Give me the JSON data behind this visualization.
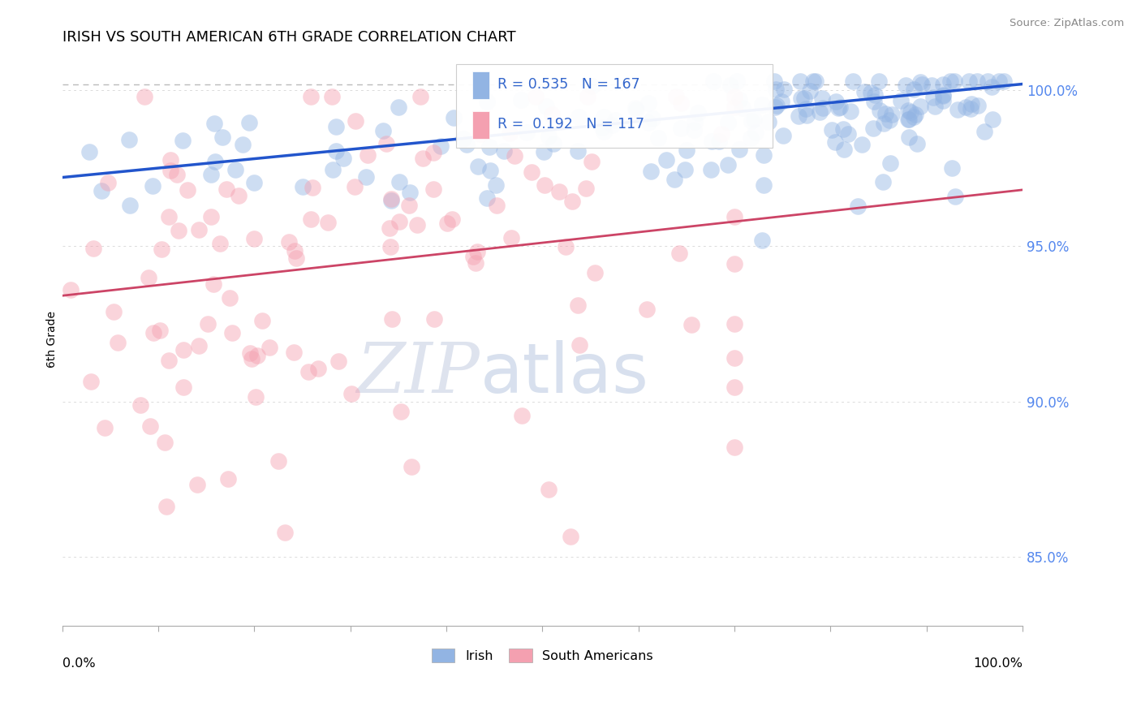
{
  "title": "IRISH VS SOUTH AMERICAN 6TH GRADE CORRELATION CHART",
  "source": "Source: ZipAtlas.com",
  "ylabel": "6th Grade",
  "legend_labels": [
    "Irish",
    "South Americans"
  ],
  "irish_color": "#92b4e3",
  "sa_color": "#f4a0b0",
  "irish_line_color": "#2255cc",
  "sa_line_color": "#cc4466",
  "irish_R": 0.535,
  "irish_N": 167,
  "sa_R": 0.192,
  "sa_N": 117,
  "right_yticks": [
    85.0,
    90.0,
    95.0,
    100.0
  ],
  "background_color": "#ffffff",
  "xmin": 0.0,
  "xmax": 1.0,
  "ymin": 0.828,
  "ymax": 1.012,
  "irish_line_x0": 0.0,
  "irish_line_y0": 0.972,
  "irish_line_x1": 1.0,
  "irish_line_y1": 1.002,
  "sa_line_x0": 0.0,
  "sa_line_y0": 0.934,
  "sa_line_x1": 1.0,
  "sa_line_y1": 0.968,
  "dashed_line_y": 1.002,
  "watermark_zip": "ZIP",
  "watermark_atlas": "atlas"
}
